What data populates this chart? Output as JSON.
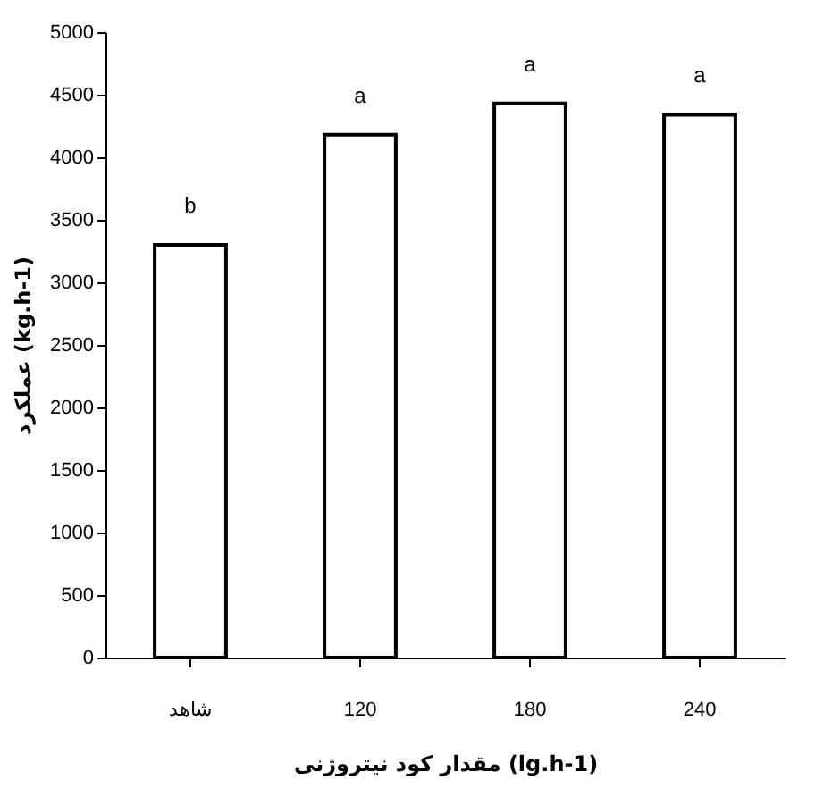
{
  "chart_data": {
    "type": "bar",
    "xlabel": "مقدار کود نیتروژنی (lg.h-1)",
    "ylabel": "عملکرد (kg.h-1)",
    "categories": [
      "شاهد",
      "120",
      "180",
      "240"
    ],
    "values": [
      3300,
      4180,
      4430,
      4340
    ],
    "color": "#ffffff",
    "ylim": [
      0,
      5000
    ],
    "yticks": [
      0,
      500,
      1000,
      1500,
      2000,
      2500,
      3000,
      3500,
      4000,
      4500,
      5000
    ],
    "annotations": [
      {
        "text": "b",
        "x": "شاهد",
        "y": 3300
      },
      {
        "text": "a",
        "x": "120",
        "y": 4180
      },
      {
        "text": "a",
        "x": "180",
        "y": 4430
      },
      {
        "text": "a",
        "x": "240",
        "y": 4340
      }
    ]
  }
}
